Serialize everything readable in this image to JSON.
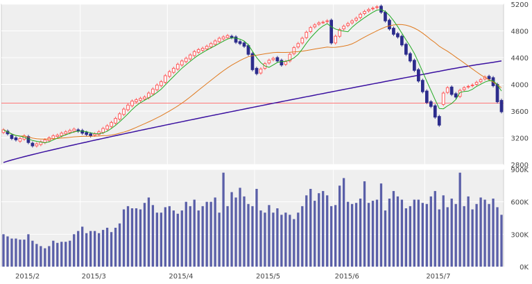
{
  "colors": {
    "panel_bg": "#efefef",
    "grid": "#ffffff",
    "axis_text": "#444444",
    "candle_up": "#ff5a5a",
    "candle_down": "#2c2c8c",
    "ma_short": "#22aa22",
    "ma_mid": "#e07a1f",
    "ma_long": "#3a10a0",
    "ref_line": "#ff7777",
    "volume_bar": "#5a5fa8"
  },
  "chart_data": [
    {
      "type": "candlestick",
      "name": "price",
      "ylim": [
        2800,
        5200
      ],
      "yticks": [
        "2800",
        "3200",
        "3600",
        "4000",
        "4400",
        "4800",
        "5200"
      ],
      "reference_line": 3720,
      "months": [
        {
          "label": "2015/2",
          "start_index": 0
        },
        {
          "label": "2015/3",
          "start_index": 19
        },
        {
          "label": "2015/4",
          "start_index": 40
        },
        {
          "label": "2015/5",
          "start_index": 61
        },
        {
          "label": "2015/6",
          "start_index": 80
        },
        {
          "label": "2015/7",
          "start_index": 102
        }
      ],
      "open": [
        3280,
        3300,
        3240,
        3200,
        3150,
        3180,
        3220,
        3120,
        3080,
        3100,
        3130,
        3160,
        3190,
        3220,
        3230,
        3260,
        3280,
        3300,
        3320,
        3310,
        3280,
        3260,
        3240,
        3250,
        3280,
        3330,
        3370,
        3420,
        3480,
        3550,
        3620,
        3680,
        3740,
        3760,
        3780,
        3800,
        3860,
        3920,
        3980,
        4030,
        4120,
        4180,
        4230,
        4290,
        4340,
        4380,
        4430,
        4480,
        4510,
        4530,
        4560,
        4600,
        4640,
        4680,
        4700,
        4720,
        4710,
        4640,
        4620,
        4580,
        4460,
        4240,
        4170,
        4240,
        4320,
        4370,
        4400,
        4360,
        4300,
        4350,
        4460,
        4560,
        4620,
        4700,
        4790,
        4860,
        4900,
        4930,
        4940,
        4960,
        4620,
        4720,
        4830,
        4880,
        4920,
        4960,
        5000,
        5060,
        5100,
        5130,
        5150,
        5170,
        5080,
        4960,
        4840,
        4760,
        4720,
        4600,
        4460,
        4360,
        4220,
        4060,
        3900,
        3740,
        3680,
        3520,
        3700,
        3880,
        3960,
        3860,
        3820,
        3920,
        3960,
        3980,
        4000,
        4040,
        4080,
        4120,
        4100,
        4000,
        3760
      ],
      "close": [
        3320,
        3260,
        3190,
        3170,
        3190,
        3230,
        3130,
        3080,
        3110,
        3140,
        3170,
        3200,
        3230,
        3240,
        3270,
        3290,
        3310,
        3330,
        3300,
        3270,
        3250,
        3230,
        3260,
        3290,
        3340,
        3380,
        3430,
        3490,
        3560,
        3630,
        3690,
        3750,
        3770,
        3790,
        3810,
        3870,
        3930,
        3990,
        4040,
        4130,
        4190,
        4240,
        4300,
        4350,
        4390,
        4440,
        4490,
        4520,
        4540,
        4570,
        4610,
        4650,
        4690,
        4710,
        4730,
        4700,
        4630,
        4610,
        4570,
        4450,
        4220,
        4160,
        4230,
        4310,
        4360,
        4390,
        4350,
        4290,
        4340,
        4450,
        4550,
        4610,
        4690,
        4780,
        4850,
        4890,
        4920,
        4930,
        4950,
        4620,
        4720,
        4820,
        4870,
        4910,
        4950,
        4990,
        5050,
        5090,
        5120,
        5140,
        5160,
        5080,
        4950,
        4830,
        4750,
        4710,
        4590,
        4450,
        4350,
        4210,
        4050,
        3890,
        3730,
        3670,
        3510,
        3390,
        3870,
        3950,
        3850,
        3810,
        3910,
        3950,
        3970,
        3990,
        4030,
        4070,
        4110,
        4080,
        3980,
        3740,
        3590
      ]
    },
    {
      "type": "bar",
      "name": "volume",
      "ylim": [
        0,
        900000
      ],
      "yticks": [
        "0K",
        "300K",
        "600K",
        "900K"
      ],
      "values": [
        300000,
        280000,
        260000,
        260000,
        250000,
        250000,
        300000,
        240000,
        210000,
        190000,
        170000,
        190000,
        240000,
        220000,
        230000,
        230000,
        240000,
        300000,
        330000,
        370000,
        310000,
        330000,
        330000,
        310000,
        340000,
        360000,
        320000,
        360000,
        400000,
        530000,
        560000,
        540000,
        540000,
        530000,
        590000,
        640000,
        570000,
        500000,
        500000,
        550000,
        560000,
        520000,
        490000,
        520000,
        600000,
        560000,
        620000,
        520000,
        560000,
        600000,
        600000,
        640000,
        500000,
        870000,
        560000,
        690000,
        640000,
        730000,
        650000,
        580000,
        560000,
        720000,
        520000,
        500000,
        570000,
        500000,
        540000,
        480000,
        500000,
        480000,
        440000,
        500000,
        560000,
        660000,
        720000,
        610000,
        680000,
        700000,
        660000,
        560000,
        570000,
        750000,
        820000,
        600000,
        580000,
        590000,
        630000,
        790000,
        590000,
        610000,
        620000,
        770000,
        520000,
        630000,
        700000,
        650000,
        620000,
        540000,
        560000,
        620000,
        620000,
        590000,
        580000,
        650000,
        700000,
        530000,
        660000,
        550000,
        630000,
        580000,
        870000,
        560000,
        650000,
        530000,
        580000,
        640000,
        620000,
        580000,
        630000,
        550000,
        480000
      ]
    }
  ]
}
